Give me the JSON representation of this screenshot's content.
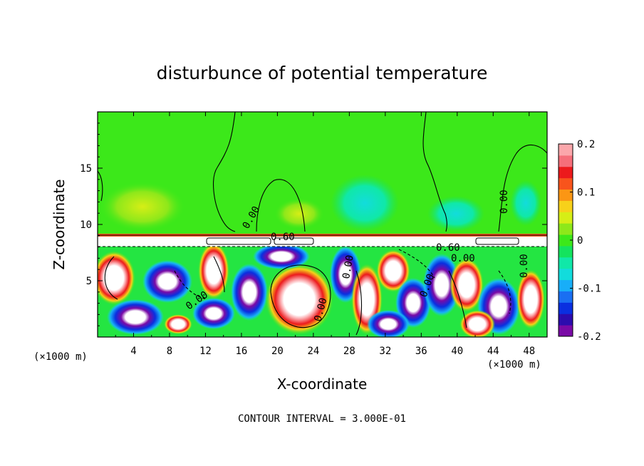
{
  "chart_data": {
    "type": "heatmap",
    "title": "disturbunce of potential temperature",
    "xlabel": "X-coordinate",
    "ylabel": "Z-coordinate",
    "x_unit_left": "(×1000 m)",
    "x_unit_right": "(×1000 m)",
    "xlim": [
      0,
      50
    ],
    "ylim": [
      0,
      20
    ],
    "xticks": [
      "4",
      "8",
      "12",
      "16",
      "20",
      "24",
      "28",
      "32",
      "36",
      "40",
      "44",
      "48"
    ],
    "xtick_values": [
      4,
      8,
      12,
      16,
      20,
      24,
      28,
      32,
      36,
      40,
      44,
      48
    ],
    "yticks": [
      "5",
      "10",
      "15"
    ],
    "ytick_values": [
      5,
      10,
      15
    ],
    "colorbar": {
      "min": -0.2,
      "max": 0.2,
      "tick_labels": [
        "0.2",
        "0.1",
        "0",
        "-0.1",
        "-0.2"
      ],
      "tick_values": [
        0.2,
        0.1,
        0,
        -0.1,
        -0.2
      ],
      "colors": [
        "#7a0aa6",
        "#2c0cae",
        "#0a2fe0",
        "#1a6ff2",
        "#18aef8",
        "#12dcdc",
        "#10e8a8",
        "#14e35e",
        "#3ce81a",
        "#8ee81a",
        "#d6ee16",
        "#f7d11a",
        "#fb9614",
        "#f8541c",
        "#ec1a1c",
        "#f56f7a",
        "#fba7ab"
      ]
    },
    "contour_labels": [
      "0.00",
      "0.00",
      "0.00",
      "0.60",
      "0.60",
      "0.00",
      "0.00",
      "0.00",
      "0.00",
      "0.00"
    ],
    "footer": "CONTOUR INTERVAL = 3.000E-01"
  }
}
